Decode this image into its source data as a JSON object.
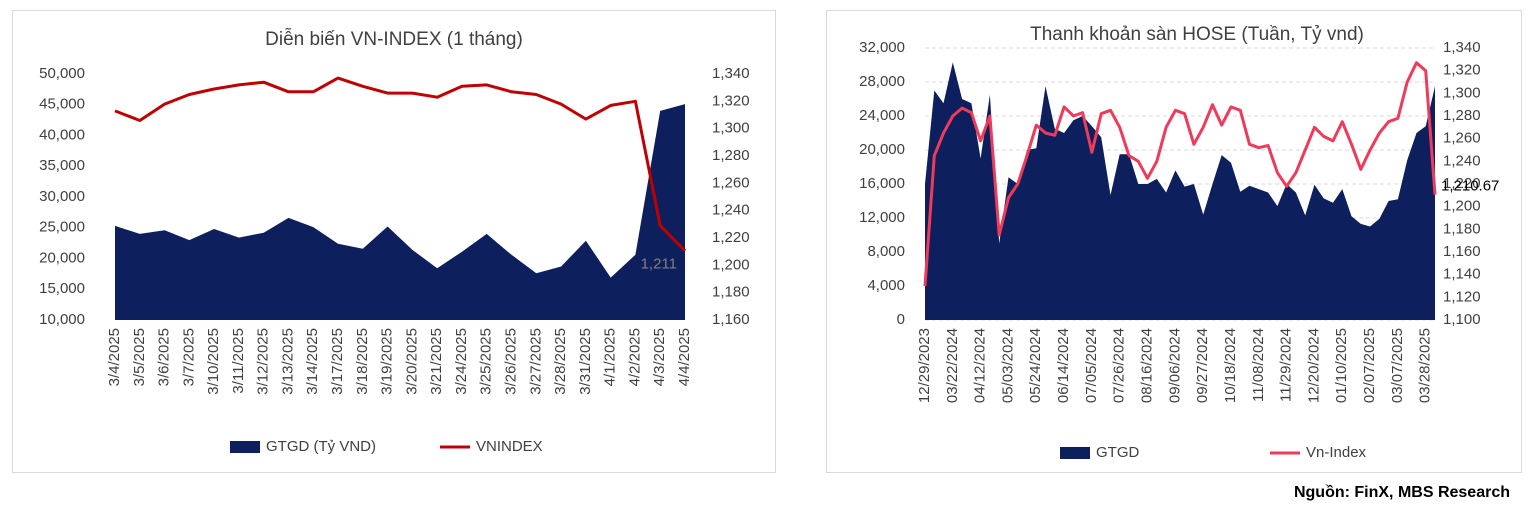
{
  "chart_data": [
    {
      "type": "area-line",
      "title": "Diễn biến VN-INDEX (1 tháng)",
      "categories": [
        "3/4/2025",
        "3/5/2025",
        "3/6/2025",
        "3/7/2025",
        "3/10/2025",
        "3/11/2025",
        "3/12/2025",
        "3/13/2025",
        "3/14/2025",
        "3/17/2025",
        "3/18/2025",
        "3/19/2025",
        "3/20/2025",
        "3/21/2025",
        "3/24/2025",
        "3/25/2025",
        "3/26/2025",
        "3/27/2025",
        "3/28/2025",
        "3/31/2025",
        "4/1/2025",
        "4/2/2025",
        "4/3/2025",
        "4/4/2025"
      ],
      "series": [
        {
          "name": "GTGD (Tỷ VND)",
          "color": "#0d1f5c",
          "values": [
            25300,
            24000,
            24600,
            23000,
            24800,
            23400,
            24200,
            26600,
            25100,
            22400,
            21600,
            25200,
            21400,
            18400,
            21100,
            24000,
            20600,
            17600,
            18700,
            22900,
            16900,
            20600,
            44000,
            45100
          ]
        },
        {
          "name": "VNINDEX",
          "color": "#c00000",
          "axis": "y2",
          "values": [
            1313,
            1306,
            1318,
            1325,
            1329,
            1332,
            1334,
            1327,
            1327,
            1337,
            1331,
            1326,
            1326,
            1323,
            1331,
            1332,
            1327,
            1325,
            1318,
            1307,
            1317,
            1320,
            1229,
            1210.67
          ],
          "value_labels": [
            null,
            null,
            null,
            null,
            null,
            null,
            null,
            null,
            null,
            null,
            null,
            null,
            null,
            null,
            null,
            null,
            null,
            null,
            null,
            null,
            null,
            null,
            null,
            "1,211"
          ]
        }
      ],
      "ylim": [
        10000,
        50000
      ],
      "yticks": [
        {
          "value": 10000,
          "label": "10,000"
        },
        {
          "value": 15000,
          "label": "15,000"
        },
        {
          "value": 20000,
          "label": "20,000"
        },
        {
          "value": 25000,
          "label": "25,000"
        },
        {
          "value": 30000,
          "label": "30,000"
        },
        {
          "value": 35000,
          "label": "35,000"
        },
        {
          "value": 40000,
          "label": "40,000"
        },
        {
          "value": 45000,
          "label": "45,000"
        },
        {
          "value": 50000,
          "label": "50,000"
        }
      ],
      "y2lim": [
        1160,
        1340
      ],
      "y2ticks": [
        {
          "value": 1160,
          "label": "1,160"
        },
        {
          "value": 1180,
          "label": "1,180"
        },
        {
          "value": 1200,
          "label": "1,200"
        },
        {
          "value": 1220,
          "label": "1,220"
        },
        {
          "value": 1240,
          "label": "1,240"
        },
        {
          "value": 1260,
          "label": "1,260"
        },
        {
          "value": 1280,
          "label": "1,280"
        },
        {
          "value": 1300,
          "label": "1,300"
        },
        {
          "value": 1320,
          "label": "1,320"
        },
        {
          "value": 1340,
          "label": "1,340"
        }
      ],
      "grid": false,
      "legend": "bottom"
    },
    {
      "type": "area-line",
      "title": "Thanh khoản sàn HOSE (Tuần, Tỷ vnd)",
      "categories": [
        "12/29/2023",
        null,
        null,
        "03/22/2024",
        null,
        null,
        "04/12/2024",
        null,
        null,
        "05/03/2024",
        null,
        null,
        "05/24/2024",
        null,
        null,
        "06/14/2024",
        null,
        null,
        "07/05/2024",
        null,
        null,
        "07/26/2024",
        null,
        null,
        "08/16/2024",
        null,
        null,
        "09/06/2024",
        null,
        null,
        "09/27/2024",
        null,
        null,
        "10/18/2024",
        null,
        null,
        "11/08/2024",
        null,
        null,
        "11/29/2024",
        null,
        null,
        "12/20/2024",
        null,
        null,
        "01/10/2025",
        null,
        null,
        "02/07/2025",
        null,
        null,
        "03/07/2025",
        null,
        null,
        "03/28/2025",
        null
      ],
      "series": [
        {
          "name": "GTGD",
          "color": "#0d1f5c",
          "values": [
            16000,
            27000,
            25500,
            30300,
            26000,
            25500,
            19000,
            26500,
            9000,
            16800,
            16000,
            20000,
            20200,
            27500,
            22500,
            22000,
            23500,
            24000,
            22800,
            21500,
            14700,
            19500,
            19500,
            16000,
            16000,
            16600,
            15000,
            17600,
            15700,
            16000,
            12400,
            16000,
            19400,
            18500,
            15100,
            15800,
            15400,
            15000,
            13400,
            16000,
            15000,
            12300,
            15900,
            14300,
            13800,
            15400,
            12200,
            11300,
            11000,
            11900,
            14000,
            14200,
            18800,
            22000,
            22800,
            27500
          ]
        },
        {
          "name": "Vn-Index",
          "color": "#ee3b5a",
          "axis": "y2",
          "values": [
            1130,
            1245,
            1265,
            1280,
            1287,
            1283,
            1258,
            1280,
            1175,
            1208,
            1220,
            1245,
            1272,
            1265,
            1263,
            1288,
            1280,
            1283,
            1248,
            1282,
            1285,
            1270,
            1245,
            1240,
            1225,
            1240,
            1270,
            1285,
            1282,
            1255,
            1270,
            1290,
            1272,
            1288,
            1285,
            1255,
            1252,
            1254,
            1230,
            1218,
            1230,
            1250,
            1270,
            1262,
            1258,
            1275,
            1255,
            1233,
            1250,
            1265,
            1275,
            1278,
            1310,
            1327,
            1320,
            1210.67
          ],
          "value_labels": [
            null,
            null,
            null,
            null,
            null,
            null,
            null,
            null,
            null,
            null,
            null,
            null,
            null,
            null,
            null,
            null,
            null,
            null,
            null,
            null,
            null,
            null,
            null,
            null,
            null,
            null,
            null,
            null,
            null,
            null,
            null,
            null,
            null,
            null,
            null,
            null,
            null,
            null,
            null,
            null,
            null,
            null,
            null,
            null,
            null,
            null,
            null,
            null,
            null,
            null,
            null,
            null,
            null,
            null,
            null,
            "1,210.67"
          ]
        }
      ],
      "ylim": [
        0,
        32000
      ],
      "yticks": [
        0,
        {
          "value": 4000,
          "label": "4,000"
        },
        {
          "value": 8000,
          "label": "8,000"
        },
        {
          "value": 12000,
          "label": "12,000"
        },
        {
          "value": 16000,
          "label": "16,000"
        },
        {
          "value": 20000,
          "label": "20,000"
        },
        {
          "value": 24000,
          "label": "24,000"
        },
        {
          "value": 28000,
          "label": "28,000"
        },
        {
          "value": 32000,
          "label": "32,000"
        }
      ],
      "y2lim": [
        1100,
        1340
      ],
      "y2ticks": [
        {
          "value": 1100,
          "label": "1,100"
        },
        {
          "value": 1120,
          "label": "1,120"
        },
        {
          "value": 1140,
          "label": "1,140"
        },
        {
          "value": 1160,
          "label": "1,160"
        },
        {
          "value": 1180,
          "label": "1,180"
        },
        {
          "value": 1200,
          "label": "1,200"
        },
        {
          "value": 1220,
          "label": "1,220"
        },
        {
          "value": 1240,
          "label": "1,240"
        },
        {
          "value": 1260,
          "label": "1,260"
        },
        {
          "value": 1280,
          "label": "1,280"
        },
        {
          "value": 1300,
          "label": "1,300"
        },
        {
          "value": 1320,
          "label": "1,320"
        },
        {
          "value": 1340,
          "label": "1,340"
        }
      ],
      "grid": true,
      "legend": "bottom"
    }
  ],
  "footer": {
    "source": "Nguồn: FinX, MBS Research"
  }
}
